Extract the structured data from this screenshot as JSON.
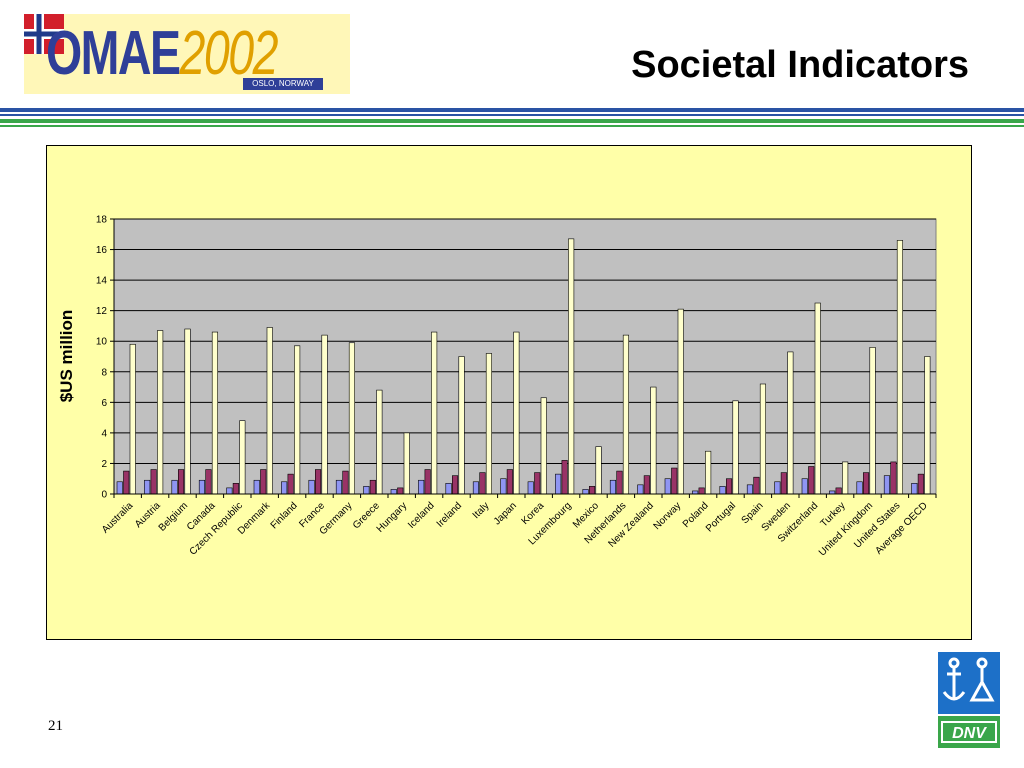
{
  "header": {
    "logo_text": "OMAE",
    "logo_year": "2002",
    "logo_tag": "OSLO, NORWAY",
    "title": "Societal Indicators"
  },
  "footer": {
    "page_number": "21",
    "dnv_logo_text": "DNV"
  },
  "colors": {
    "series1": "#8f95f2",
    "series2": "#993366",
    "series3": "#ffffcc",
    "plot_bg": "#c0c0c0",
    "frame_bg": "#ffffa8",
    "band_blue": "#2a53a4",
    "band_green": "#3aa64a",
    "dnv_blue": "#1d70c8",
    "dnv_green": "#3aa64a"
  },
  "chart_data": {
    "type": "bar",
    "ylabel": "$US million",
    "ylim": [
      0,
      18
    ],
    "yticks": [
      0,
      2,
      4,
      6,
      8,
      10,
      12,
      14,
      16,
      18
    ],
    "grid": true,
    "legend": "none",
    "categories": [
      "Australia",
      "Austria",
      "Belgium",
      "Canada",
      "Czech Republic",
      "Denmark",
      "Finland",
      "France",
      "Germany",
      "Greece",
      "Hungary",
      "Iceland",
      "Ireland",
      "Italy",
      "Japan",
      "Korea",
      "Luxembourg",
      "Mexico",
      "Netherlands",
      "New Zealand",
      "Norway",
      "Poland",
      "Portugal",
      "Spain",
      "Sweden",
      "Switzerland",
      "Turkey",
      "United Kingdom",
      "United States",
      "Average OECD"
    ],
    "series": [
      {
        "values": [
          0.8,
          0.9,
          0.9,
          0.9,
          0.4,
          0.9,
          0.8,
          0.9,
          0.9,
          0.5,
          0.3,
          0.9,
          0.7,
          0.8,
          1.0,
          0.8,
          1.3,
          0.3,
          0.9,
          0.6,
          1.0,
          0.2,
          0.5,
          0.6,
          0.8,
          1.0,
          0.2,
          0.8,
          1.2,
          0.7
        ]
      },
      {
        "values": [
          1.5,
          1.6,
          1.6,
          1.6,
          0.7,
          1.6,
          1.3,
          1.6,
          1.5,
          0.9,
          0.4,
          1.6,
          1.2,
          1.4,
          1.6,
          1.4,
          2.2,
          0.5,
          1.5,
          1.2,
          1.7,
          0.4,
          1.0,
          1.1,
          1.4,
          1.8,
          0.4,
          1.4,
          2.1,
          1.3
        ]
      },
      {
        "values": [
          9.8,
          10.7,
          10.8,
          10.6,
          4.8,
          10.9,
          9.7,
          10.4,
          9.9,
          6.8,
          4.0,
          10.6,
          9.0,
          9.2,
          10.6,
          6.3,
          16.7,
          3.1,
          10.4,
          7.0,
          12.1,
          2.8,
          6.1,
          7.2,
          9.3,
          12.5,
          2.1,
          9.6,
          16.6,
          9.0
        ]
      }
    ]
  }
}
